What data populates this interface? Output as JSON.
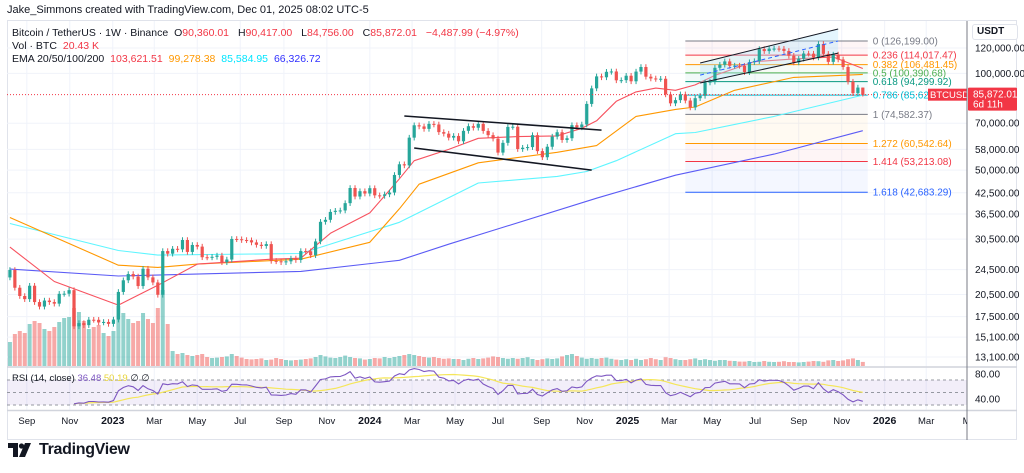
{
  "header": {
    "credit": "Jake_Simmons created with TradingView.com, Dec 01, 2025 08:02 UTC-5"
  },
  "legend": {
    "symbol": "Bitcoin / TetherUS · 1W · Binance",
    "o_label": "O",
    "o": "90,360.01",
    "h_label": "H",
    "h": "90,417.00",
    "l_label": "L",
    "l": "84,756.00",
    "c_label": "C",
    "c": "85,872.01",
    "change": "−4,487.99 (−4.97%)",
    "vol_label": "Vol · BTC",
    "vol": "20.43 K",
    "ema_label": "EMA 20/50/100/200",
    "ema_values": [
      "103,621.51",
      "99,278.38",
      "85,584.95",
      "66,326.72"
    ]
  },
  "rsi_legend": {
    "label": "RSI (14, close)",
    "value": "36.48",
    "ma": "50.19",
    "extra1": "∅",
    "extra2": "∅"
  },
  "axis": {
    "currency": "USDT",
    "price_labels": [
      {
        "label": "120,000.00",
        "price": 120000
      },
      {
        "label": "100,000.00",
        "price": 100000
      },
      {
        "label": "70,000.00",
        "price": 70000
      },
      {
        "label": "58,000.00",
        "price": 58000
      },
      {
        "label": "50,000.00",
        "price": 50000
      },
      {
        "label": "42,500.00",
        "price": 42500
      },
      {
        "label": "36,500.00",
        "price": 36500
      },
      {
        "label": "30,500.00",
        "price": 30500
      },
      {
        "label": "24,500.00",
        "price": 24500
      },
      {
        "label": "20,500.00",
        "price": 20500
      },
      {
        "label": "17,500.00",
        "price": 17500
      },
      {
        "label": "15,100.00",
        "price": 15100
      },
      {
        "label": "13,100.00",
        "price": 13100
      }
    ],
    "rsi_labels": [
      {
        "label": "80.00",
        "value": 80
      },
      {
        "label": "40.00",
        "value": 40
      }
    ],
    "time_labels": [
      {
        "label": "Sep",
        "date": "2022-09-01"
      },
      {
        "label": "Nov",
        "date": "2022-11-01"
      },
      {
        "label": "2023",
        "date": "2023-01-01"
      },
      {
        "label": "Mar",
        "date": "2023-03-01"
      },
      {
        "label": "May",
        "date": "2023-05-01"
      },
      {
        "label": "Jul",
        "date": "2023-07-01"
      },
      {
        "label": "Sep",
        "date": "2023-09-01"
      },
      {
        "label": "Nov",
        "date": "2023-11-01"
      },
      {
        "label": "2024",
        "date": "2024-01-01"
      },
      {
        "label": "Mar",
        "date": "2024-03-01"
      },
      {
        "label": "May",
        "date": "2024-05-01"
      },
      {
        "label": "Jul",
        "date": "2024-07-01"
      },
      {
        "label": "Sep",
        "date": "2024-09-01"
      },
      {
        "label": "Nov",
        "date": "2024-11-01"
      },
      {
        "label": "2025",
        "date": "2025-01-01"
      },
      {
        "label": "Mar",
        "date": "2025-03-01"
      },
      {
        "label": "May",
        "date": "2025-05-01"
      },
      {
        "label": "Jul",
        "date": "2025-07-01"
      },
      {
        "label": "Sep",
        "date": "2025-09-01"
      },
      {
        "label": "Nov",
        "date": "2025-11-01"
      },
      {
        "label": "2026",
        "date": "2026-01-01"
      },
      {
        "label": "Mar",
        "date": "2026-03-01"
      },
      {
        "label": "Ma",
        "date": "2026-05-01"
      }
    ]
  },
  "price_tag": {
    "symbol": "BTCUSDT",
    "price": "85,872.01",
    "countdown": "6d 11h",
    "color": "#f23645"
  },
  "fib": [
    {
      "label": "0 (126,199.00)",
      "price": 126199.0,
      "color": "#787b86"
    },
    {
      "label": "0.236 (114,017.47)",
      "price": 114017.47,
      "color": "#f23645"
    },
    {
      "label": "0.382 (106,481.45)",
      "price": 106481.45,
      "color": "#ff9800"
    },
    {
      "label": "0.5 (100,390.68)",
      "price": 100390.68,
      "color": "#4caf50"
    },
    {
      "label": "0.618 (94,299.92)",
      "price": 94299.92,
      "color": "#089981"
    },
    {
      "label": "0.786 (85,628.",
      "price": 85628.33,
      "color": "#00bcd4"
    },
    {
      "label": "1 (74,582.37)",
      "price": 74582.37,
      "color": "#787b86"
    },
    {
      "label": "1.272 (60,542.64)",
      "price": 60542.64,
      "color": "#ff9800"
    },
    {
      "label": "1.414 (53,213.08)",
      "price": 53213.08,
      "color": "#f23645"
    },
    {
      "label": "1.618 (42,683.29)",
      "price": 42683.29,
      "color": "#2962ff"
    }
  ],
  "fib_range": {
    "start": "2025-03-24",
    "end": "2025-12-08"
  },
  "drawings": {
    "descending_channel": [
      {
        "from": [
          "2024-02-19",
          73700
        ],
        "to": [
          "2024-11-25",
          66600
        ]
      },
      {
        "from": [
          "2024-03-04",
          58600
        ],
        "to": [
          "2024-11-11",
          50000
        ]
      }
    ],
    "rising_channel": {
      "top": {
        "from": [
          "2025-04-14",
          107800
        ],
        "to": [
          "2025-10-27",
          137500
        ]
      },
      "middle": {
        "from": [
          "2025-04-14",
          98800
        ],
        "to": [
          "2025-10-27",
          126200
        ]
      },
      "bottom": {
        "from": [
          "2025-04-14",
          93400
        ],
        "to": [
          "2025-10-27",
          115700
        ]
      }
    }
  },
  "colors": {
    "up": "#26a69a",
    "down": "#ef5350",
    "ema20": "#f7525f",
    "ema50": "#ff9800",
    "ema100": "#5ef5ff",
    "ema200": "#5b5bf5",
    "rsi": "#7e57c2",
    "rsi_ma": "#f5e65a"
  },
  "brand": {
    "name": "TradingView"
  },
  "chart_data": {
    "type": "candlestick",
    "interval": "1W",
    "y_scale": "log",
    "ylim": [
      13100,
      140000
    ],
    "grid": true,
    "first_week": "2022-08-01",
    "close": [
      23170,
      24440,
      21520,
      20280,
      19830,
      21830,
      19420,
      18800,
      19630,
      19420,
      19200,
      20600,
      20620,
      21150,
      16320,
      16700,
      16460,
      17110,
      17100,
      16780,
      16840,
      16610,
      17130,
      20880,
      22700,
      23740,
      23320,
      21780,
      24660,
      23180,
      22350,
      20460,
      27990,
      27470,
      28450,
      28330,
      30300,
      27820,
      29240,
      28900,
      26780,
      26750,
      26860,
      27100,
      25840,
      26340,
      30530,
      30470,
      30290,
      30250,
      29780,
      29280,
      29040,
      29420,
      26090,
      26010,
      25840,
      26000,
      26530,
      26250,
      27990,
      27950,
      27170,
      29990,
      34520,
      35020,
      37060,
      37360,
      37450,
      39460,
      43990,
      41380,
      42990,
      42280,
      43930,
      41730,
      41580,
      42030,
      42580,
      48300,
      52140,
      51730,
      63110,
      68960,
      68390,
      67210,
      69650,
      69360,
      65660,
      64940,
      63120,
      63890,
      61480,
      66270,
      68510,
      67760,
      69650,
      66220,
      64250,
      62680,
      56700,
      60800,
      68160,
      68250,
      58160,
      58710,
      58970,
      64250,
      57300,
      54840,
      59130,
      63580,
      65600,
      62060,
      62850,
      69000,
      67960,
      69360,
      80370,
      89850,
      97900,
      97280,
      101170,
      101420,
      95190,
      95290,
      98360,
      94520,
      101330,
      104730,
      97690,
      96460,
      96120,
      96260,
      86060,
      80700,
      82580,
      86080,
      82330,
      78380,
      83740,
      85170,
      93740,
      94280,
      104120,
      106450,
      109000,
      105640,
      105750,
      105590,
      100960,
      108380,
      109220,
      119080,
      117380,
      119450,
      119480,
      119290,
      117470,
      113490,
      108250,
      111140,
      115340,
      115230,
      112160,
      123510,
      115070,
      108640,
      114470,
      110540,
      104720,
      94250,
      86800,
      90360,
      85872.01
    ],
    "last_candle": {
      "open": 90360.01,
      "high": 90417.0,
      "low": 84756.0,
      "close": 85872.01
    },
    "volume_k": [
      150,
      120,
      160,
      175,
      165,
      210,
      225,
      215,
      185,
      175,
      195,
      220,
      240,
      245,
      290,
      270,
      225,
      185,
      195,
      205,
      165,
      150,
      175,
      300,
      265,
      235,
      215,
      225,
      265,
      235,
      215,
      290,
      380,
      210,
      75,
      60,
      65,
      55,
      50,
      55,
      60,
      45,
      40,
      42,
      45,
      48,
      60,
      50,
      42,
      35,
      33,
      35,
      38,
      30,
      32,
      40,
      35,
      30,
      28,
      30,
      32,
      35,
      38,
      45,
      55,
      48,
      42,
      40,
      45,
      52,
      45,
      40,
      38,
      32,
      35,
      40,
      38,
      45,
      40,
      45,
      50,
      55,
      60,
      55,
      50,
      45,
      42,
      45,
      40,
      36,
      38,
      35,
      35,
      30,
      36,
      40,
      35,
      38,
      42,
      48,
      45,
      40,
      36,
      40,
      36,
      40,
      44,
      35,
      30,
      34,
      38,
      35,
      38,
      48,
      55,
      60,
      50,
      42,
      36,
      40,
      36,
      40,
      42,
      36,
      32,
      30,
      34,
      30,
      36,
      30,
      34,
      40,
      34,
      30,
      44,
      40,
      34,
      30,
      30,
      34,
      38,
      30,
      34,
      30,
      26,
      30,
      30,
      26,
      25,
      22,
      22,
      25,
      20,
      21,
      25,
      21,
      20,
      21,
      24,
      20,
      20,
      18,
      20,
      22,
      25,
      24,
      21,
      28,
      30,
      25,
      28,
      34,
      38,
      30,
      20.43
    ],
    "ema": {
      "ema20": [
        [
          "2022-08-08",
          28800
        ],
        [
          "2022-10-10",
          22500
        ],
        [
          "2023-01-09",
          19000
        ],
        [
          "2023-03-06",
          21900
        ],
        [
          "2023-05-01",
          25500
        ],
        [
          "2023-08-14",
          26400
        ],
        [
          "2023-09-25",
          26600
        ],
        [
          "2023-11-06",
          31800
        ],
        [
          "2024-01-01",
          36800
        ],
        [
          "2024-02-12",
          47000
        ],
        [
          "2024-03-04",
          53500
        ],
        [
          "2024-04-22",
          58000
        ],
        [
          "2024-06-03",
          62800
        ],
        [
          "2024-07-29",
          63600
        ],
        [
          "2024-09-23",
          63900
        ],
        [
          "2024-10-28",
          67500
        ],
        [
          "2024-11-18",
          71200
        ],
        [
          "2024-12-16",
          81900
        ],
        [
          "2025-01-13",
          87600
        ],
        [
          "2025-02-10",
          90000
        ],
        [
          "2025-03-10",
          88600
        ],
        [
          "2025-04-07",
          92100
        ],
        [
          "2025-05-05",
          98600
        ],
        [
          "2025-06-30",
          108800
        ],
        [
          "2025-08-25",
          111000
        ],
        [
          "2025-10-20",
          112500
        ],
        [
          "2025-12-01",
          103621.51
        ]
      ],
      "ema50": [
        [
          "2022-08-08",
          35600
        ],
        [
          "2023-01-09",
          25300
        ],
        [
          "2023-03-06",
          24900
        ],
        [
          "2023-05-01",
          25500
        ],
        [
          "2023-09-25",
          26400
        ],
        [
          "2024-01-01",
          29800
        ],
        [
          "2024-02-12",
          37900
        ],
        [
          "2024-03-11",
          45200
        ],
        [
          "2024-06-03",
          52700
        ],
        [
          "2024-09-23",
          56800
        ],
        [
          "2024-11-18",
          59600
        ],
        [
          "2025-01-13",
          73500
        ],
        [
          "2025-03-10",
          77300
        ],
        [
          "2025-04-07",
          78600
        ],
        [
          "2025-06-02",
          88600
        ],
        [
          "2025-08-25",
          97200
        ],
        [
          "2025-12-01",
          99278.38
        ]
      ],
      "ema100": [
        [
          "2022-08-08",
          34100
        ],
        [
          "2023-01-09",
          28100
        ],
        [
          "2023-03-06",
          27200
        ],
        [
          "2023-09-25",
          27500
        ],
        [
          "2024-02-12",
          34400
        ],
        [
          "2024-06-03",
          45600
        ],
        [
          "2024-09-23",
          47800
        ],
        [
          "2024-11-04",
          49500
        ],
        [
          "2024-12-16",
          53500
        ],
        [
          "2025-03-10",
          64900
        ],
        [
          "2025-04-07",
          65500
        ],
        [
          "2025-07-28",
          73500
        ],
        [
          "2025-12-01",
          85584.95
        ]
      ],
      "ema200": [
        [
          "2022-08-08",
          24600
        ],
        [
          "2023-01-09",
          23400
        ],
        [
          "2023-09-25",
          24200
        ],
        [
          "2024-02-12",
          26200
        ],
        [
          "2024-04-22",
          29400
        ],
        [
          "2024-07-01",
          32800
        ],
        [
          "2024-11-18",
          40900
        ],
        [
          "2025-03-10",
          48200
        ],
        [
          "2025-07-28",
          56100
        ],
        [
          "2025-12-01",
          66326.72
        ]
      ]
    },
    "rsi": {
      "length": 14,
      "ma_length": 14,
      "bands": [
        70,
        50,
        30
      ],
      "ylim": [
        20,
        90
      ]
    }
  }
}
